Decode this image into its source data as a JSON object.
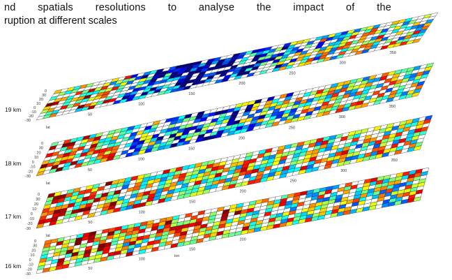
{
  "text": {
    "line1": "nd spatials resolutions to analyse the impact of the",
    "line2": "ruption at different scales"
  },
  "layers": [
    {
      "label": "19 km",
      "lat_ticks": [
        "0",
        "30",
        "20",
        "10",
        "0",
        "-10",
        "-20",
        "-30"
      ],
      "lon_ticks": [
        "50",
        "100",
        "150",
        "200",
        "250",
        "300",
        "350"
      ],
      "lat_axis": "lat",
      "lon_axis": ""
    },
    {
      "label": "18 km",
      "lat_ticks": [
        "0",
        "30",
        "20",
        "10",
        "0",
        "-10",
        "-20",
        "-30"
      ],
      "lon_ticks": [
        "50",
        "100",
        "150",
        "200",
        "250",
        "300",
        "350"
      ],
      "lat_axis": "lat",
      "lon_axis": ""
    },
    {
      "label": "17 km",
      "lat_ticks": [
        "0",
        "30",
        "20",
        "10",
        "0",
        "-10",
        "-20",
        "-30"
      ],
      "lon_ticks": [
        "50",
        "100",
        "150",
        "200",
        "250",
        "300",
        "350"
      ],
      "lat_axis": "lat",
      "lon_axis": ""
    },
    {
      "label": "16 km",
      "lat_ticks": [
        "0",
        "30",
        "20",
        "10",
        "0",
        "-10",
        "-20",
        "-30"
      ],
      "lon_ticks": [
        "50",
        "100",
        "150",
        "200"
      ],
      "lat_axis": "",
      "lon_axis": "lon"
    }
  ],
  "colormap": "jet"
}
